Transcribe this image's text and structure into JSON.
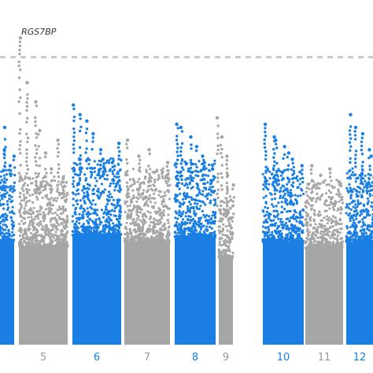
{
  "chart_data": {
    "type": "scatter",
    "subtype": "manhattan",
    "title": "",
    "xlabel": "",
    "ylabel": "",
    "ylim": [
      0,
      10
    ],
    "threshold": 9.0,
    "colors": {
      "odd": "#a6a6a6",
      "even": "#1a7fe3",
      "threshold_line": "#c8c8c8"
    },
    "visible_tick_labels": [
      {
        "chromosome": "5",
        "text": "5",
        "color_group": "odd"
      },
      {
        "chromosome": "6",
        "text": "6",
        "color_group": "even"
      },
      {
        "chromosome": "7",
        "text": "7",
        "color_group": "odd"
      },
      {
        "chromosome": "8",
        "text": "8",
        "color_group": "even"
      },
      {
        "chromosome": "9",
        "text": "9",
        "color_group": "odd"
      },
      {
        "chromosome": "10",
        "text": "10",
        "color_group": "even"
      },
      {
        "chromosome": "11",
        "text": "11",
        "color_group": "odd"
      },
      {
        "chromosome": "12",
        "text": "12",
        "color_group": "even"
      }
    ],
    "chromosomes": [
      {
        "name": "4",
        "color_group": "even",
        "dense_top": 4.6,
        "peaks": [
          7.3,
          6.1,
          6.8,
          5.6,
          5.9
        ]
      },
      {
        "name": "5",
        "color_group": "odd",
        "dense_top": 4.4,
        "peaks": [
          9.6,
          8.2,
          7.6,
          6.7,
          6.0,
          5.5,
          6.4,
          5.2
        ]
      },
      {
        "name": "6",
        "color_group": "even",
        "dense_top": 4.9,
        "peaks": [
          7.5,
          7.2,
          7.0,
          6.6,
          6.1,
          5.8,
          5.7,
          6.3
        ]
      },
      {
        "name": "7",
        "color_group": "odd",
        "dense_top": 4.6,
        "peaks": [
          6.4,
          5.9,
          6.1,
          5.4,
          5.7
        ]
      },
      {
        "name": "8",
        "color_group": "even",
        "dense_top": 4.8,
        "peaks": [
          6.9,
          6.8,
          6.5,
          6.2,
          5.9,
          5.7,
          5.5
        ]
      },
      {
        "name": "9",
        "color_group": "odd",
        "dense_top": 3.9,
        "peaks": [
          7.1,
          6.5,
          5.9,
          5.3,
          5.0
        ]
      },
      {
        "name": "10",
        "color_group": "even",
        "dense_top": 4.6,
        "peaks": [
          6.9,
          6.5,
          6.4,
          6.2,
          6.0,
          5.8,
          5.6
        ]
      },
      {
        "name": "11",
        "color_group": "odd",
        "dense_top": 4.3,
        "peaks": [
          5.6,
          5.3,
          5.5,
          5.1
        ]
      },
      {
        "name": "12",
        "color_group": "even",
        "dense_top": 4.6,
        "peaks": [
          7.2,
          6.8,
          6.6,
          6.1,
          5.9
        ]
      }
    ],
    "annotations": [
      {
        "text": "RGS7BP",
        "chromosome": "5",
        "value": 9.6
      }
    ]
  }
}
